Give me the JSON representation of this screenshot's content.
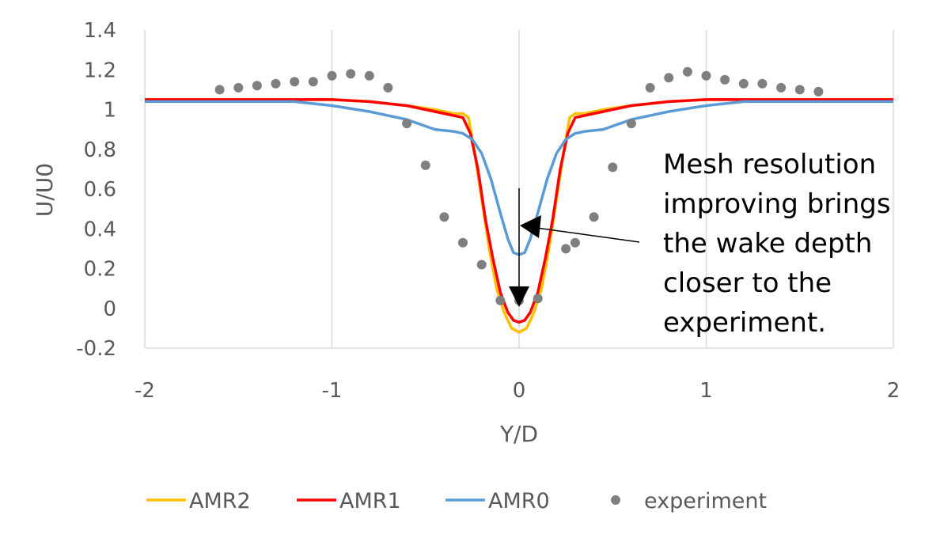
{
  "chart_data": {
    "type": "line",
    "title": "",
    "xlabel": "Y/D",
    "ylabel": "U/U0",
    "xlim": [
      -2,
      2
    ],
    "ylim": [
      -0.2,
      1.4
    ],
    "x_ticks": [
      "-2",
      "-1",
      "0",
      "1",
      "2"
    ],
    "y_ticks": [
      "1.4",
      "1.2",
      "1",
      "0.8",
      "0.6",
      "0.4",
      "0.2",
      "0",
      "-0.2"
    ],
    "grid": "vertical",
    "legend_position": "bottom",
    "series": [
      {
        "name": "AMR2",
        "kind": "line",
        "color": "#FFC000",
        "points": [
          [
            -2,
            1.05
          ],
          [
            -1.5,
            1.05
          ],
          [
            -1.0,
            1.05
          ],
          [
            -0.8,
            1.04
          ],
          [
            -0.6,
            1.02
          ],
          [
            -0.45,
            1.0
          ],
          [
            -0.35,
            0.98
          ],
          [
            -0.3,
            0.98
          ],
          [
            -0.27,
            0.96
          ],
          [
            -0.24,
            0.8
          ],
          [
            -0.2,
            0.55
          ],
          [
            -0.16,
            0.3
          ],
          [
            -0.12,
            0.1
          ],
          [
            -0.08,
            -0.02
          ],
          [
            -0.04,
            -0.1
          ],
          [
            0,
            -0.12
          ],
          [
            0.04,
            -0.1
          ],
          [
            0.08,
            -0.02
          ],
          [
            0.12,
            0.1
          ],
          [
            0.16,
            0.3
          ],
          [
            0.2,
            0.55
          ],
          [
            0.24,
            0.8
          ],
          [
            0.27,
            0.96
          ],
          [
            0.3,
            0.98
          ],
          [
            0.35,
            0.98
          ],
          [
            0.45,
            1.0
          ],
          [
            0.6,
            1.02
          ],
          [
            0.8,
            1.04
          ],
          [
            1.0,
            1.05
          ],
          [
            1.5,
            1.05
          ],
          [
            2,
            1.05
          ]
        ]
      },
      {
        "name": "AMR1",
        "kind": "line",
        "color": "#FF0000",
        "points": [
          [
            -2,
            1.05
          ],
          [
            -1.5,
            1.05
          ],
          [
            -1.0,
            1.05
          ],
          [
            -0.8,
            1.04
          ],
          [
            -0.6,
            1.02
          ],
          [
            -0.45,
            0.99
          ],
          [
            -0.35,
            0.97
          ],
          [
            -0.3,
            0.96
          ],
          [
            -0.26,
            0.88
          ],
          [
            -0.22,
            0.7
          ],
          [
            -0.18,
            0.45
          ],
          [
            -0.14,
            0.25
          ],
          [
            -0.1,
            0.08
          ],
          [
            -0.06,
            -0.02
          ],
          [
            -0.03,
            -0.06
          ],
          [
            0,
            -0.07
          ],
          [
            0.03,
            -0.06
          ],
          [
            0.06,
            -0.02
          ],
          [
            0.1,
            0.08
          ],
          [
            0.14,
            0.25
          ],
          [
            0.18,
            0.45
          ],
          [
            0.22,
            0.7
          ],
          [
            0.26,
            0.88
          ],
          [
            0.3,
            0.96
          ],
          [
            0.35,
            0.97
          ],
          [
            0.45,
            0.99
          ],
          [
            0.6,
            1.02
          ],
          [
            0.8,
            1.04
          ],
          [
            1.0,
            1.05
          ],
          [
            1.5,
            1.05
          ],
          [
            2,
            1.05
          ]
        ]
      },
      {
        "name": "AMR0",
        "kind": "line",
        "color": "#5B9BD5",
        "points": [
          [
            -2,
            1.04
          ],
          [
            -1.5,
            1.04
          ],
          [
            -1.2,
            1.04
          ],
          [
            -1.0,
            1.02
          ],
          [
            -0.8,
            0.99
          ],
          [
            -0.6,
            0.95
          ],
          [
            -0.45,
            0.9
          ],
          [
            -0.35,
            0.89
          ],
          [
            -0.3,
            0.88
          ],
          [
            -0.25,
            0.85
          ],
          [
            -0.2,
            0.78
          ],
          [
            -0.15,
            0.65
          ],
          [
            -0.1,
            0.48
          ],
          [
            -0.06,
            0.35
          ],
          [
            -0.03,
            0.28
          ],
          [
            0,
            0.27
          ],
          [
            0.03,
            0.28
          ],
          [
            0.06,
            0.35
          ],
          [
            0.1,
            0.48
          ],
          [
            0.15,
            0.65
          ],
          [
            0.2,
            0.78
          ],
          [
            0.25,
            0.85
          ],
          [
            0.3,
            0.88
          ],
          [
            0.35,
            0.89
          ],
          [
            0.45,
            0.9
          ],
          [
            0.6,
            0.95
          ],
          [
            0.8,
            0.99
          ],
          [
            1.0,
            1.02
          ],
          [
            1.2,
            1.04
          ],
          [
            1.5,
            1.04
          ],
          [
            2,
            1.04
          ]
        ]
      },
      {
        "name": "experiment",
        "kind": "scatter",
        "color": "#7F7F7F",
        "points": [
          [
            -1.6,
            1.1
          ],
          [
            -1.5,
            1.11
          ],
          [
            -1.4,
            1.12
          ],
          [
            -1.3,
            1.13
          ],
          [
            -1.2,
            1.14
          ],
          [
            -1.1,
            1.14
          ],
          [
            -1.0,
            1.17
          ],
          [
            -0.9,
            1.18
          ],
          [
            -0.8,
            1.17
          ],
          [
            -0.7,
            1.11
          ],
          [
            -0.6,
            0.93
          ],
          [
            -0.5,
            0.72
          ],
          [
            -0.4,
            0.46
          ],
          [
            -0.3,
            0.33
          ],
          [
            -0.2,
            0.22
          ],
          [
            -0.1,
            0.04
          ],
          [
            0.0,
            0.04
          ],
          [
            0.1,
            0.05
          ],
          [
            0.25,
            0.3
          ],
          [
            0.3,
            0.33
          ],
          [
            0.4,
            0.46
          ],
          [
            0.5,
            0.71
          ],
          [
            0.6,
            0.93
          ],
          [
            0.7,
            1.11
          ],
          [
            0.8,
            1.16
          ],
          [
            0.9,
            1.19
          ],
          [
            1.0,
            1.17
          ],
          [
            1.1,
            1.15
          ],
          [
            1.2,
            1.13
          ],
          [
            1.3,
            1.13
          ],
          [
            1.4,
            1.11
          ],
          [
            1.5,
            1.1
          ],
          [
            1.6,
            1.09
          ]
        ]
      }
    ],
    "annotation": {
      "lines": [
        "Mesh resolution",
        "improving brings",
        "the wake depth",
        "closer to the",
        "experiment."
      ]
    }
  }
}
